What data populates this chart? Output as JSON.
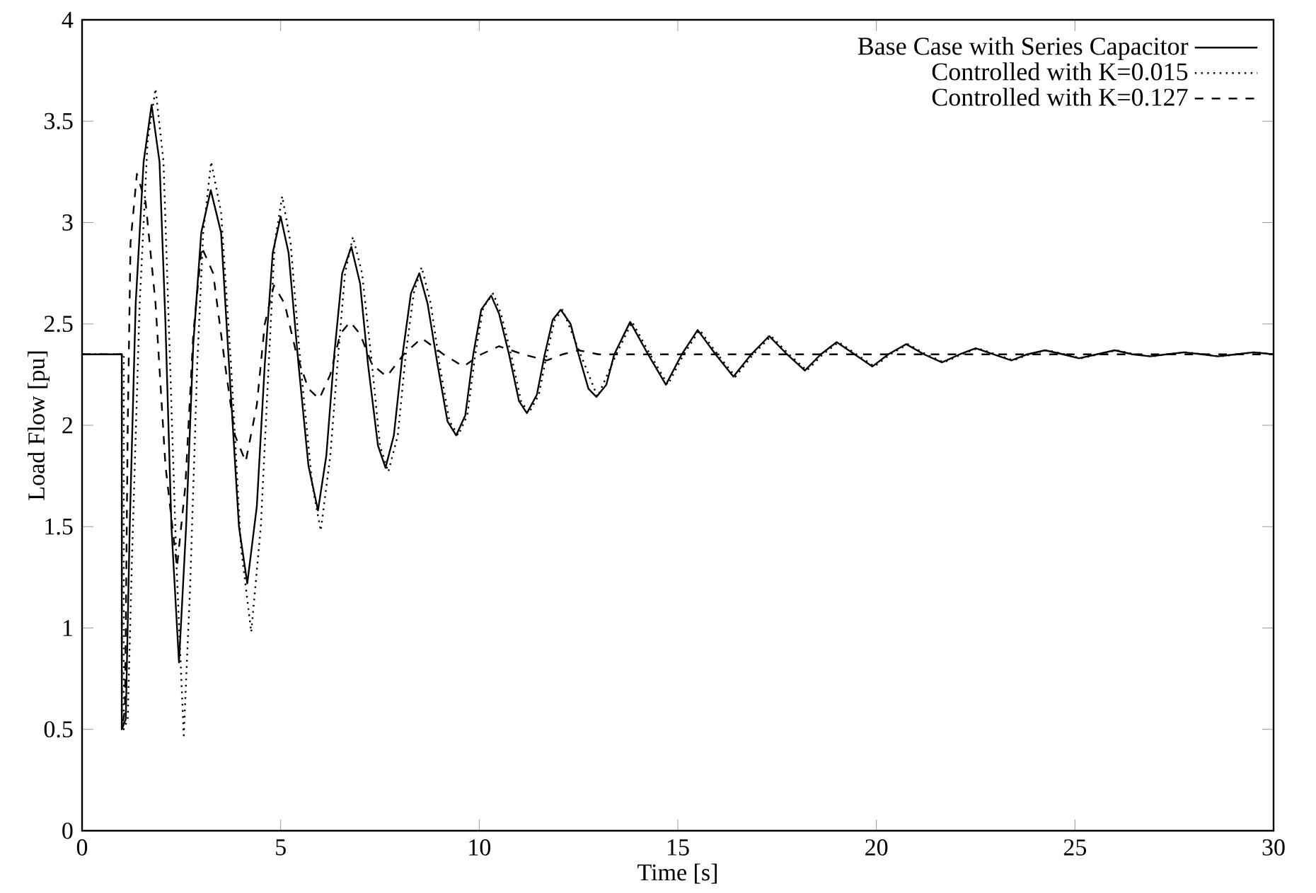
{
  "chart_data": {
    "type": "line",
    "xlabel": "Time [s]",
    "ylabel": "Load Flow [pu]",
    "xlim": [
      0,
      30
    ],
    "ylim": [
      0,
      4
    ],
    "xticks": [
      0,
      5,
      10,
      15,
      20,
      25,
      30
    ],
    "yticks": [
      0,
      0.5,
      1,
      1.5,
      2,
      2.5,
      3,
      3.5,
      4
    ],
    "grid": false,
    "legend": "top right",
    "marker": "none",
    "series": [
      {
        "name": "Base Case with Series Capacitor",
        "color": "#000000",
        "line_style": "solid",
        "x": [
          0,
          1.0,
          1.0,
          1.1,
          1.2,
          1.35,
          1.55,
          1.75,
          1.95,
          2.1,
          2.25,
          2.44,
          2.62,
          2.8,
          3.0,
          3.24,
          3.5,
          3.7,
          3.95,
          4.16,
          4.4,
          4.6,
          4.8,
          5.0,
          5.2,
          5.45,
          5.7,
          5.94,
          6.15,
          6.35,
          6.55,
          6.78,
          7.0,
          7.2,
          7.45,
          7.64,
          7.85,
          8.07,
          8.28,
          8.49,
          8.7,
          8.95,
          9.2,
          9.42,
          9.65,
          9.85,
          10.05,
          10.3,
          10.5,
          10.75,
          11.0,
          11.2,
          11.45,
          11.65,
          11.85,
          12.05,
          12.3,
          12.5,
          12.75,
          12.95,
          13.2,
          13.4,
          13.8,
          14.25,
          14.7,
          15.1,
          15.5,
          15.95,
          16.4,
          16.85,
          17.3,
          17.75,
          18.2,
          18.6,
          19.0,
          19.45,
          19.9,
          20.3,
          20.75,
          21.2,
          21.65,
          22.1,
          22.5,
          22.95,
          23.4,
          23.8,
          24.25,
          24.7,
          25.1,
          25.55,
          26.0,
          26.45,
          26.9,
          27.3,
          27.75,
          28.2,
          28.6,
          29.05,
          29.5,
          30
        ],
        "values": [
          2.35,
          2.35,
          0.5,
          0.55,
          1.5,
          2.6,
          3.3,
          3.58,
          3.3,
          2.5,
          1.5,
          0.83,
          1.5,
          2.4,
          2.95,
          3.16,
          2.95,
          2.3,
          1.5,
          1.22,
          1.6,
          2.3,
          2.85,
          3.03,
          2.85,
          2.3,
          1.8,
          1.58,
          1.85,
          2.35,
          2.75,
          2.88,
          2.7,
          2.3,
          1.9,
          1.79,
          1.95,
          2.35,
          2.65,
          2.75,
          2.6,
          2.3,
          2.02,
          1.95,
          2.05,
          2.35,
          2.57,
          2.64,
          2.55,
          2.35,
          2.12,
          2.06,
          2.15,
          2.35,
          2.52,
          2.57,
          2.5,
          2.35,
          2.18,
          2.14,
          2.2,
          2.35,
          2.51,
          2.35,
          2.2,
          2.35,
          2.47,
          2.35,
          2.24,
          2.35,
          2.44,
          2.35,
          2.27,
          2.35,
          2.41,
          2.35,
          2.29,
          2.35,
          2.4,
          2.35,
          2.31,
          2.35,
          2.38,
          2.35,
          2.32,
          2.35,
          2.37,
          2.35,
          2.33,
          2.35,
          2.37,
          2.35,
          2.34,
          2.35,
          2.36,
          2.35,
          2.34,
          2.35,
          2.36,
          2.35
        ]
      },
      {
        "name": "Controlled with K=0.015",
        "color": "#000000",
        "line_style": "dotted",
        "x": [
          0,
          1.05,
          1.05,
          1.15,
          1.25,
          1.45,
          1.65,
          1.85,
          2.05,
          2.2,
          2.38,
          2.56,
          2.72,
          2.9,
          3.05,
          3.25,
          3.5,
          3.75,
          4.0,
          4.26,
          4.5,
          4.7,
          4.85,
          5.04,
          5.25,
          5.5,
          5.8,
          6.01,
          6.25,
          6.45,
          6.62,
          6.82,
          7.05,
          7.3,
          7.5,
          7.71,
          7.95,
          8.15,
          8.35,
          8.55,
          8.78,
          9.0,
          9.25,
          9.47,
          9.7,
          9.9,
          10.1,
          10.35,
          10.55,
          10.8,
          11.05,
          11.25,
          11.5,
          11.7,
          11.9,
          12.1,
          12.55,
          12.98,
          13.45,
          13.85,
          14.3,
          14.75,
          15.15,
          15.55,
          16.0,
          16.45,
          16.9,
          17.35,
          17.8,
          18.25,
          18.65,
          19.05,
          19.5,
          19.95,
          20.35,
          20.8,
          21.25,
          21.7,
          22.15,
          22.55,
          23.0,
          23.45,
          23.85,
          24.3,
          24.75,
          25.15,
          25.6,
          26.05,
          26.5,
          26.95,
          27.35,
          27.8,
          28.25,
          28.65,
          29.1,
          29.55,
          30
        ],
        "values": [
          2.35,
          2.35,
          0.5,
          0.55,
          1.3,
          2.6,
          3.4,
          3.66,
          3.3,
          2.4,
          1.3,
          0.47,
          1.2,
          2.3,
          2.95,
          3.3,
          3.05,
          2.3,
          1.4,
          0.98,
          1.5,
          2.3,
          2.9,
          3.13,
          2.9,
          2.3,
          1.7,
          1.48,
          1.85,
          2.35,
          2.75,
          2.93,
          2.75,
          2.3,
          1.9,
          1.77,
          1.95,
          2.35,
          2.65,
          2.78,
          2.6,
          2.3,
          2.02,
          1.95,
          2.05,
          2.35,
          2.58,
          2.65,
          2.55,
          2.35,
          2.12,
          2.06,
          2.15,
          2.35,
          2.52,
          2.57,
          2.35,
          2.14,
          2.35,
          2.51,
          2.35,
          2.2,
          2.35,
          2.47,
          2.35,
          2.24,
          2.35,
          2.44,
          2.35,
          2.27,
          2.35,
          2.41,
          2.35,
          2.29,
          2.35,
          2.4,
          2.35,
          2.31,
          2.35,
          2.38,
          2.35,
          2.32,
          2.35,
          2.37,
          2.35,
          2.33,
          2.35,
          2.37,
          2.35,
          2.34,
          2.35,
          2.36,
          2.35,
          2.34,
          2.35,
          2.36,
          2.35
        ]
      },
      {
        "name": "Controlled with K=0.127",
        "color": "#000000",
        "line_style": "dashed",
        "x": [
          0,
          1.0,
          1.0,
          1.08,
          1.15,
          1.22,
          1.38,
          1.6,
          1.85,
          2.1,
          2.39,
          2.6,
          2.8,
          3.01,
          3.3,
          3.6,
          3.85,
          4.12,
          4.4,
          4.6,
          4.83,
          5.1,
          5.4,
          5.7,
          5.97,
          6.25,
          6.5,
          6.75,
          7.0,
          7.3,
          7.67,
          8.1,
          8.55,
          9.1,
          9.6,
          10.05,
          10.5,
          11.1,
          11.7,
          12.1,
          12.5,
          13.0,
          14,
          30
        ],
        "values": [
          2.35,
          2.35,
          0.5,
          0.6,
          2.0,
          2.9,
          3.24,
          3.1,
          2.6,
          1.8,
          1.3,
          1.7,
          2.45,
          2.88,
          2.75,
          2.3,
          1.95,
          1.82,
          2.1,
          2.5,
          2.69,
          2.6,
          2.35,
          2.18,
          2.13,
          2.25,
          2.45,
          2.51,
          2.45,
          2.3,
          2.24,
          2.35,
          2.43,
          2.35,
          2.29,
          2.35,
          2.39,
          2.35,
          2.32,
          2.35,
          2.37,
          2.35,
          2.35,
          2.35
        ]
      }
    ]
  }
}
